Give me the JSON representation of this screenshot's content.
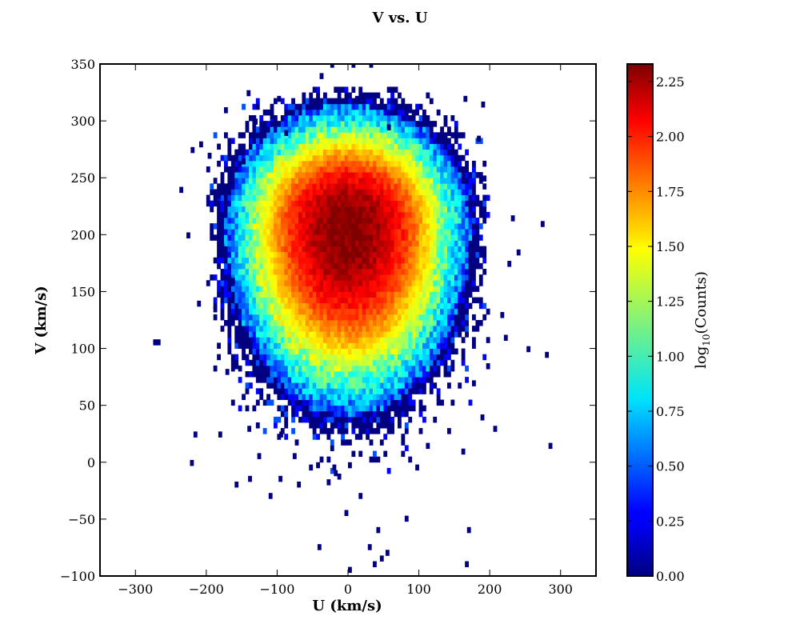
{
  "chart_data": {
    "type": "heatmap",
    "title": "V vs. U",
    "xlabel": "U (km/s)",
    "ylabel": "V (km/s)",
    "xlim": [
      -350,
      350
    ],
    "ylim": [
      -100,
      350
    ],
    "xticks": [
      -300,
      -200,
      -100,
      0,
      100,
      200,
      300
    ],
    "xtick_labels": [
      "−300",
      "−200",
      "−100",
      "0",
      "100",
      "200",
      "300"
    ],
    "yticks": [
      -100,
      -50,
      0,
      50,
      100,
      150,
      200,
      250,
      300,
      350
    ],
    "ytick_labels": [
      "−100",
      "−50",
      "0",
      "50",
      "100",
      "150",
      "200",
      "250",
      "300",
      "350"
    ],
    "bin_size": 5,
    "colormap": "jet",
    "grid": false,
    "density_peak": {
      "u": 0,
      "v": 208,
      "log10_counts": 2.33
    },
    "colorbar": {
      "label_main": "log",
      "label_sub": "10",
      "label_rest": "(Counts)",
      "range": [
        0,
        2.33
      ],
      "ticks": [
        0,
        0.25,
        0.5,
        0.75,
        1.0,
        1.25,
        1.5,
        1.75,
        2.0,
        2.25
      ],
      "tick_labels": [
        "0.00",
        "0.25",
        "0.50",
        "0.75",
        "1.00",
        "1.25",
        "1.50",
        "1.75",
        "2.00",
        "2.25"
      ]
    },
    "outlier_bins": [
      [
        -275,
        103
      ],
      [
        -270,
        103
      ],
      [
        -238,
        237
      ],
      [
        -228,
        197
      ],
      [
        -222,
        272
      ],
      [
        -218,
        22
      ],
      [
        -223,
        -3
      ],
      [
        -213,
        137
      ],
      [
        -210,
        277
      ],
      [
        -198,
        267
      ],
      [
        -190,
        132
      ],
      [
        -185,
        232
      ],
      [
        -183,
        22
      ],
      [
        -180,
        187
      ],
      [
        -175,
        307
      ],
      [
        -173,
        77
      ],
      [
        -165,
        157
      ],
      [
        -160,
        -22
      ],
      [
        -160,
        82
      ],
      [
        -150,
        262
      ],
      [
        -143,
        322
      ],
      [
        -142,
        27
      ],
      [
        -141,
        -17
      ],
      [
        -133,
        297
      ],
      [
        -128,
        3
      ],
      [
        -112,
        -32
      ],
      [
        -110,
        302
      ],
      [
        -100,
        317
      ],
      [
        -98,
        -17
      ],
      [
        -97,
        22
      ],
      [
        -90,
        287
      ],
      [
        -78,
        3
      ],
      [
        -72,
        -22
      ],
      [
        -55,
        -7
      ],
      [
        -43,
        -77
      ],
      [
        -40,
        337
      ],
      [
        -25,
        347
      ],
      [
        -22,
        -7
      ],
      [
        -20,
        -12
      ],
      [
        -5,
        -47
      ],
      [
        0,
        -97
      ],
      [
        5,
        347
      ],
      [
        10,
        317
      ],
      [
        15,
        -32
      ],
      [
        28,
        -77
      ],
      [
        30,
        347
      ],
      [
        35,
        -92
      ],
      [
        40,
        -62
      ],
      [
        45,
        -87
      ],
      [
        53,
        -82
      ],
      [
        55,
        292
      ],
      [
        80,
        -52
      ],
      [
        85,
        307
      ],
      [
        95,
        -7
      ],
      [
        110,
        12
      ],
      [
        140,
        287
      ],
      [
        160,
        7
      ],
      [
        163,
        317
      ],
      [
        165,
        -92
      ],
      [
        168,
        -62
      ],
      [
        175,
        67
      ],
      [
        182,
        282
      ],
      [
        187,
        37
      ],
      [
        188,
        312
      ],
      [
        190,
        247
      ],
      [
        195,
        82
      ],
      [
        205,
        27
      ],
      [
        215,
        127
      ],
      [
        220,
        107
      ],
      [
        225,
        172
      ],
      [
        230,
        212
      ],
      [
        238,
        182
      ],
      [
        252,
        97
      ],
      [
        272,
        207
      ],
      [
        278,
        92
      ],
      [
        283,
        12
      ]
    ]
  }
}
